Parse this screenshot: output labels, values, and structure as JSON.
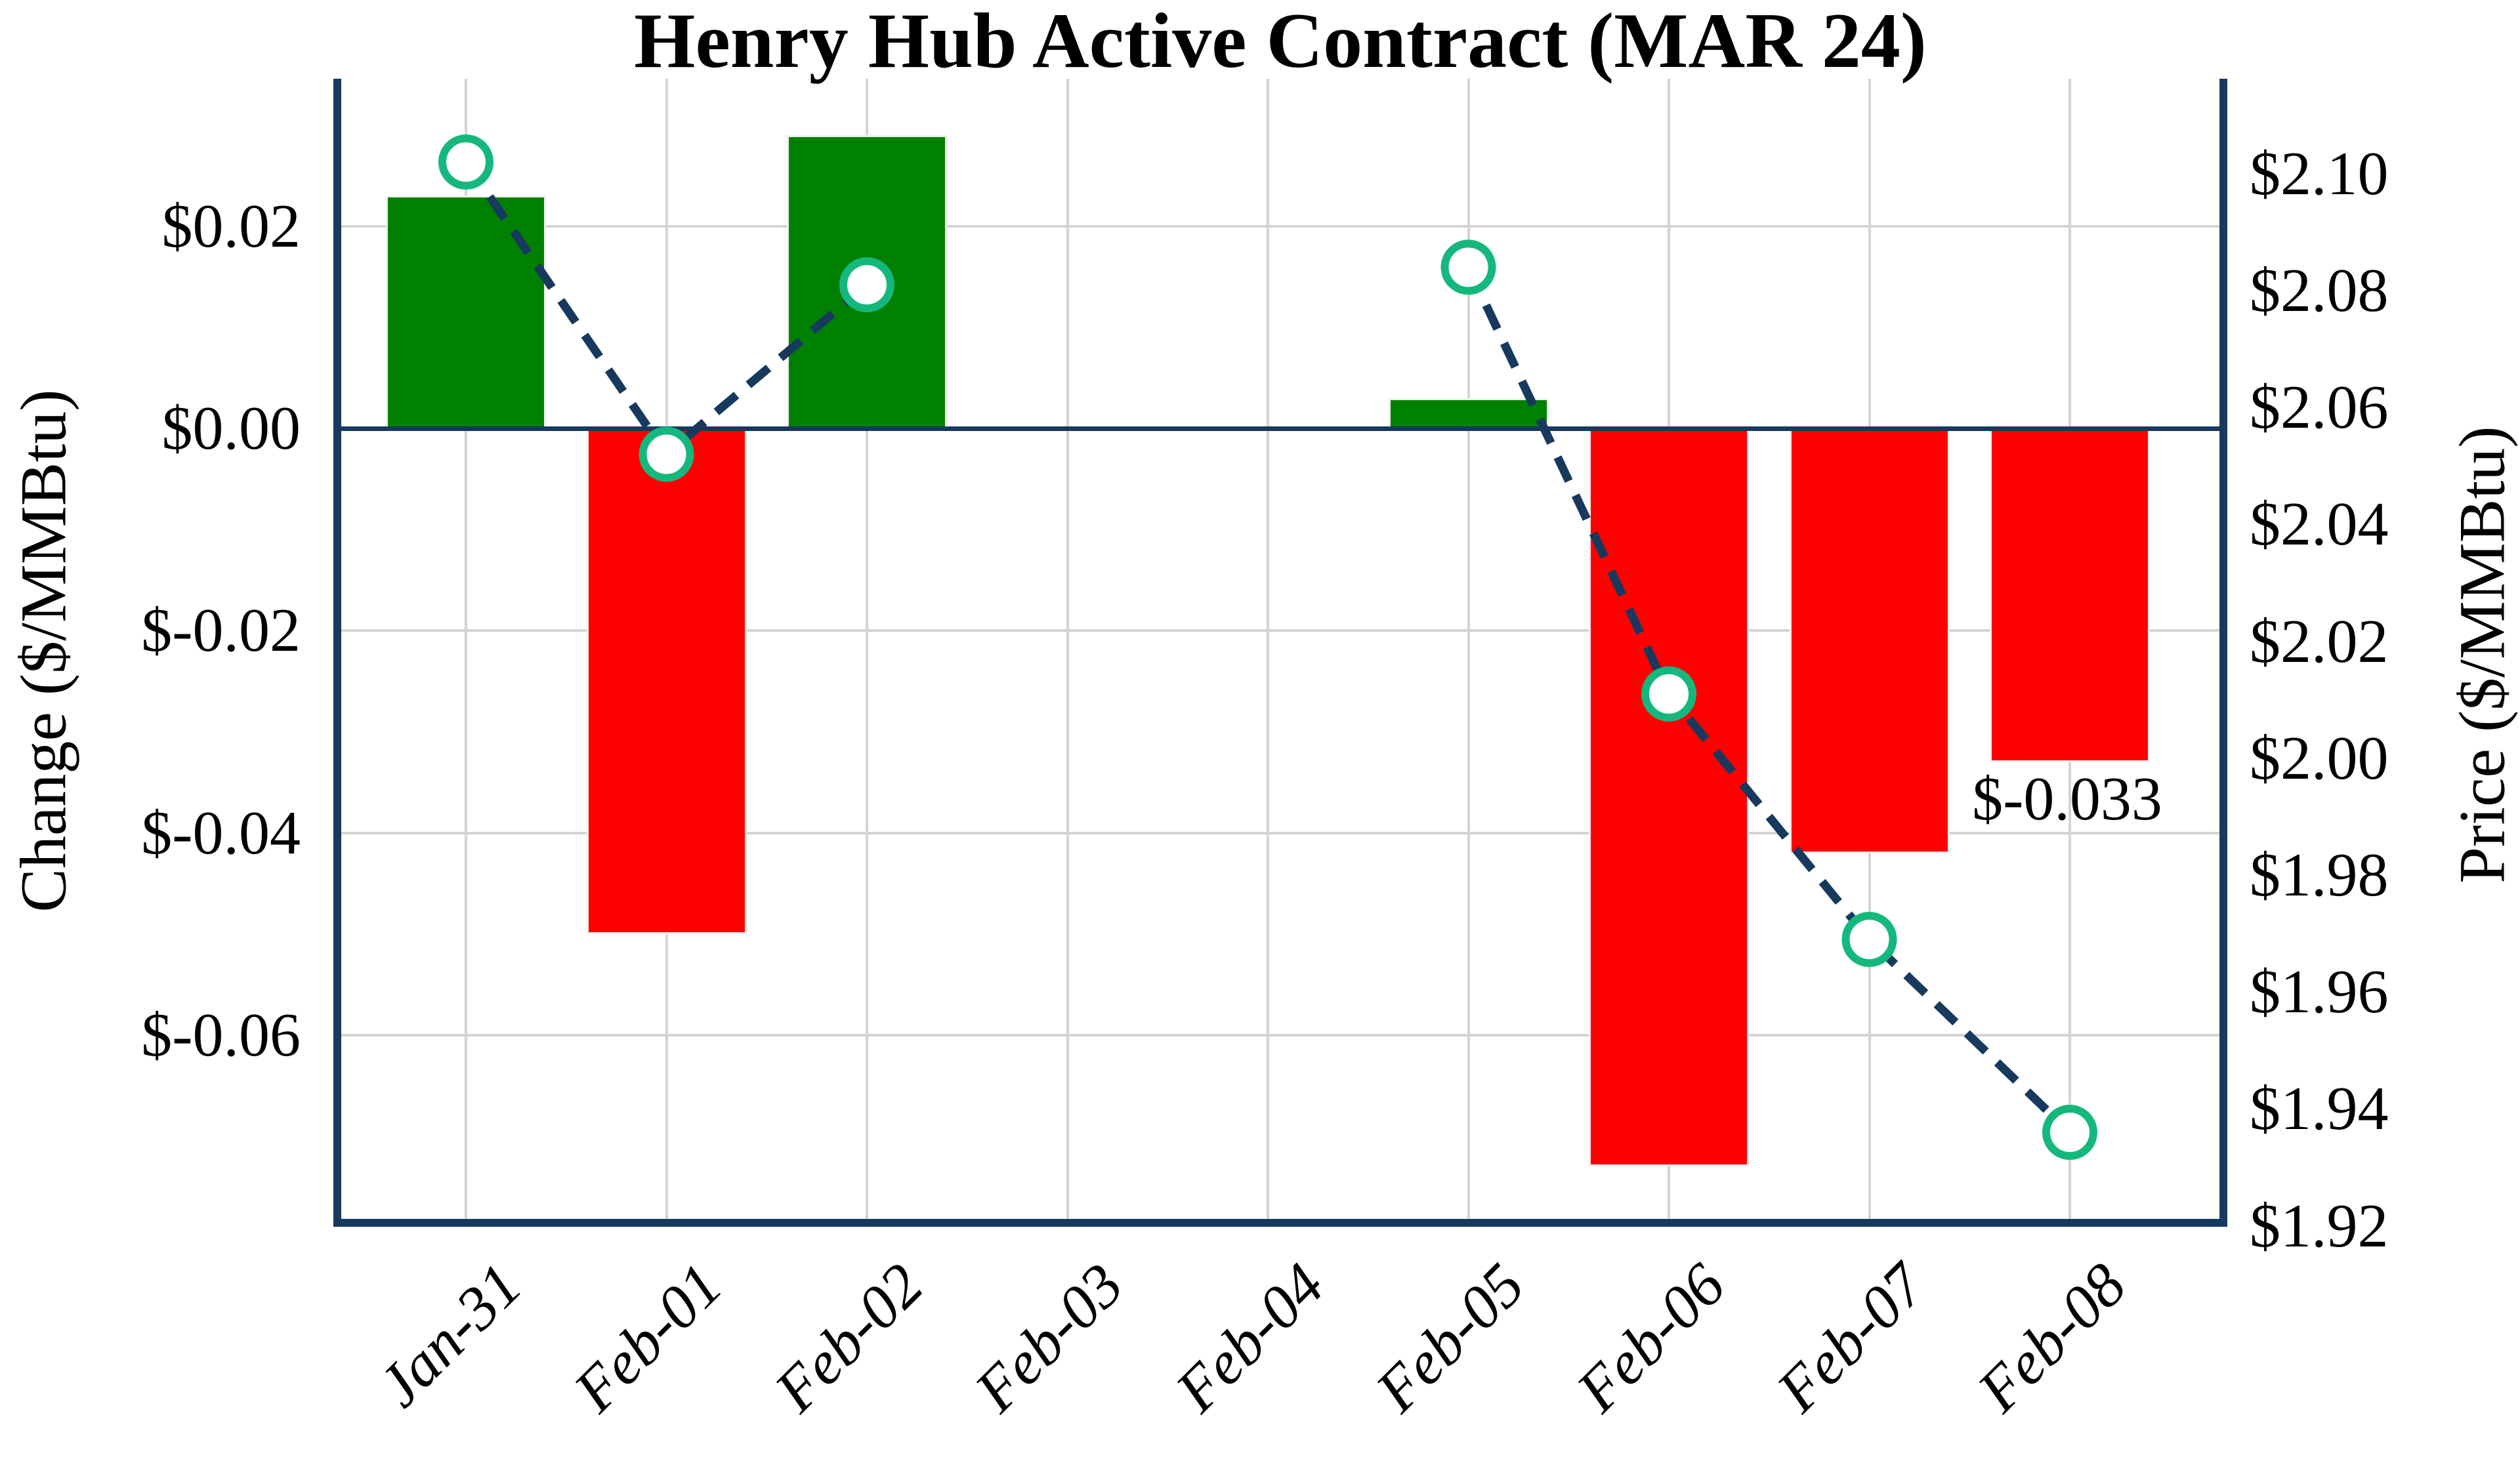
{
  "title": "Henry Hub Active Contract (MAR 24)",
  "left_axis": {
    "label": "Change ($/MMBtu)",
    "tick_labels": [
      "$0.02",
      "$0.00",
      "$-0.02",
      "$-0.04",
      "$-0.06"
    ],
    "tick_values": [
      0.02,
      0.0,
      -0.02,
      -0.04,
      -0.06
    ],
    "range_top": 0.0346,
    "range_bottom": -0.0786
  },
  "right_axis": {
    "label": "Price ($/MMBtu)",
    "tick_labels": [
      "$2.10",
      "$2.08",
      "$2.06",
      "$2.04",
      "$2.02",
      "$2.00",
      "$1.98",
      "$1.96",
      "$1.94",
      "$1.92"
    ],
    "tick_values": [
      2.1,
      2.08,
      2.06,
      2.04,
      2.02,
      2.0,
      1.98,
      1.96,
      1.94,
      1.92
    ],
    "range_top": 2.1162,
    "range_bottom": 1.9204
  },
  "annotation": {
    "text": "$-0.033",
    "category": "Feb-08"
  },
  "colors": {
    "bar_positive": "#008000",
    "bar_negative": "#ff0000",
    "line": "#17395e",
    "marker_ring": "#15b87c",
    "marker_fill": "#ffffff",
    "spine": "#17395e",
    "zero_line": "#17395e",
    "grid": "#d4d4d4",
    "background": "#ffffff",
    "text": "#000000"
  },
  "chart_data": {
    "type": "bar",
    "subtype": "dual-axis bar + dashed line with open circle markers",
    "title": "Henry Hub Active Contract (MAR 24)",
    "xlabel": "",
    "ylabel_left": "Change ($/MMBtu)",
    "ylabel_right": "Price ($/MMBtu)",
    "categories": [
      "Jan-31",
      "Feb-01",
      "Feb-02",
      "Feb-03",
      "Feb-04",
      "Feb-05",
      "Feb-06",
      "Feb-07",
      "Feb-08"
    ],
    "series": [
      {
        "name": "Daily change ($/MMBtu)",
        "type": "bar",
        "axis": "left",
        "values": [
          0.023,
          -0.05,
          0.029,
          null,
          null,
          0.003,
          -0.073,
          -0.042,
          -0.033
        ]
      },
      {
        "name": "Price ($/MMBtu)",
        "type": "line",
        "axis": "right",
        "values": [
          2.102,
          2.052,
          2.081,
          null,
          null,
          2.084,
          2.011,
          1.969,
          1.936
        ]
      }
    ],
    "ylim_left": [
      -0.0786,
      0.0346
    ],
    "ylim_right": [
      1.9204,
      2.1162
    ],
    "grid": "on",
    "legend": "none",
    "annotations": [
      {
        "text": "$-0.033",
        "category": "Feb-08",
        "value_axis": "left",
        "near_value": -0.033
      }
    ]
  }
}
